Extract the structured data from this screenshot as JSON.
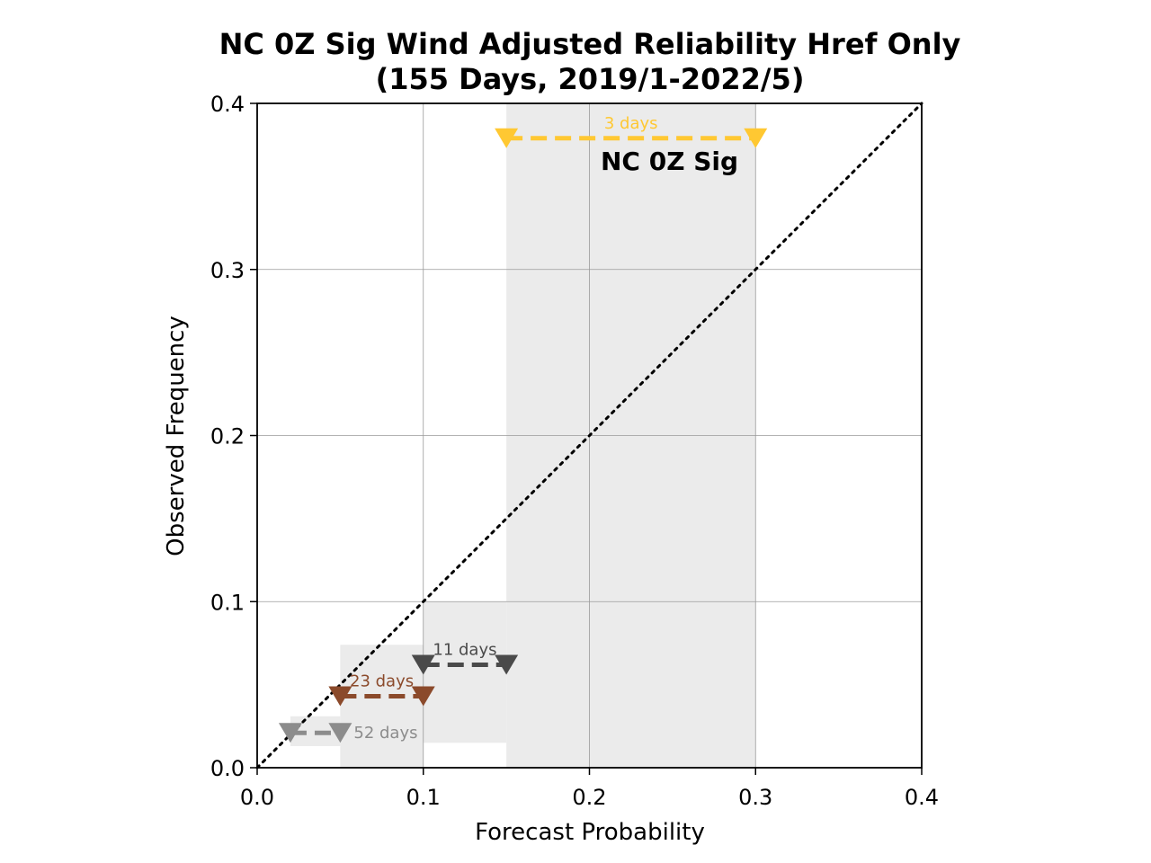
{
  "chart_data": {
    "type": "line",
    "title_line1": "NC 0Z Sig Wind Adjusted Reliability Href Only",
    "title_line2": "(155 Days, 2019/1-2022/5)",
    "xlabel": "Forecast Probability",
    "ylabel": "Observed Frequency",
    "xlim": [
      0.0,
      0.4
    ],
    "ylim": [
      0.0,
      0.4
    ],
    "xticks": [
      "0.0",
      "0.1",
      "0.2",
      "0.3",
      "0.4"
    ],
    "yticks": [
      "0.0",
      "0.1",
      "0.2",
      "0.3",
      "0.4"
    ],
    "grid": true,
    "diagonal": true,
    "annotation": "NC 0Z Sig",
    "bins": [
      {
        "x_start": 0.02,
        "x_end": 0.05,
        "y": 0.021,
        "range_low": 0.013,
        "range_high": 0.031,
        "days_label": "52 days",
        "color": "#8c8c8c"
      },
      {
        "x_start": 0.05,
        "x_end": 0.1,
        "y": 0.043,
        "range_low": 0.0,
        "range_high": 0.074,
        "days_label": "23 days",
        "color": "#8b4a2b"
      },
      {
        "x_start": 0.1,
        "x_end": 0.15,
        "y": 0.062,
        "range_low": 0.015,
        "range_high": 0.1,
        "days_label": "11 days",
        "color": "#4a4a4a"
      },
      {
        "x_start": 0.15,
        "x_end": 0.3,
        "y": 0.379,
        "range_low": 0.0,
        "range_high": 0.4,
        "days_label": "3 days",
        "color": "#ffc832"
      }
    ]
  }
}
